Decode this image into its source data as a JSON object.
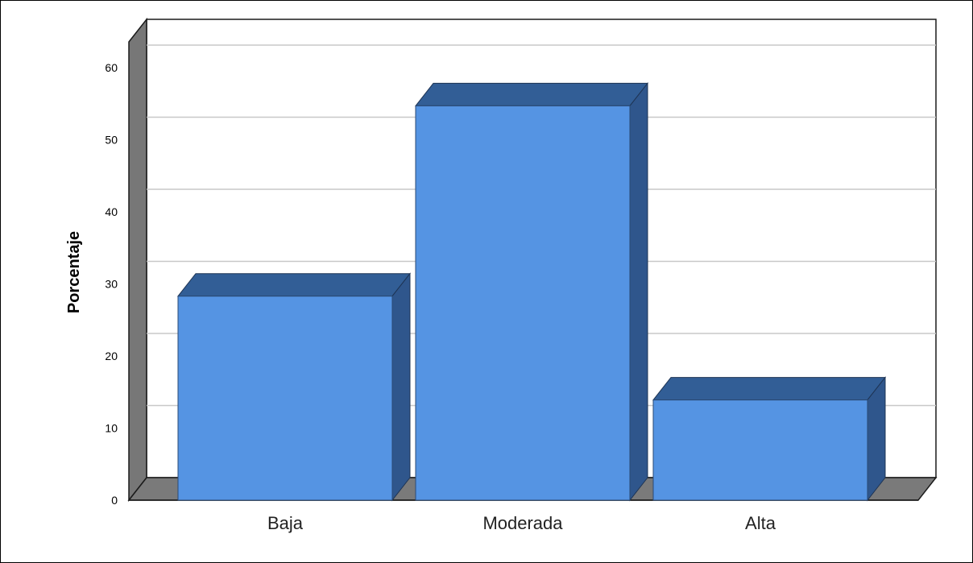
{
  "chart_data": {
    "type": "bar",
    "categories": [
      "Baja",
      "Moderada",
      "Alta"
    ],
    "values": [
      28.3,
      54.7,
      13.9
    ],
    "title": "",
    "xlabel": "",
    "ylabel": "Porcentaje",
    "ylim": [
      0,
      60
    ],
    "yticks": [
      0,
      10,
      20,
      30,
      40,
      50,
      60
    ],
    "grid": true,
    "legend": "none",
    "style": "3d-bars",
    "colors": {
      "bar_front": "#5594e3",
      "bar_top": "#325e96",
      "bar_side": "#2f568c",
      "wall": "#777777",
      "floor": "#7a7a7a",
      "gridline": "#c8c8c8"
    }
  }
}
